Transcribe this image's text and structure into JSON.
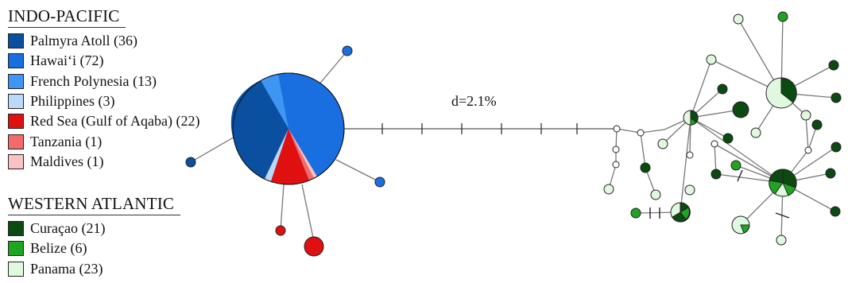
{
  "legend": {
    "indo_pacific": {
      "heading": "INDO-PACIFIC",
      "items": [
        {
          "label": "Palmyra Atoll (36)",
          "color": "#0a4fa0"
        },
        {
          "label": "Hawai‘i (72)",
          "color": "#1a6fe0"
        },
        {
          "label": "French Polynesia (13)",
          "color": "#3f95f2"
        },
        {
          "label": "Philippines (3)",
          "color": "#bcd8f8"
        },
        {
          "label": "Red Sea (Gulf of Aqaba) (22)",
          "color": "#e01010"
        },
        {
          "label": "Tanzania (1)",
          "color": "#f46a6a"
        },
        {
          "label": "Maldives (1)",
          "color": "#f9c2c2"
        }
      ]
    },
    "western_atlantic": {
      "heading": "WESTERN ATLANTIC",
      "items": [
        {
          "label": "Curaçao (21)",
          "color": "#0b4a10"
        },
        {
          "label": "Belize (6)",
          "color": "#1fa51f"
        },
        {
          "label": "Panama (23)",
          "color": "#e0f8df"
        }
      ]
    }
  },
  "network": {
    "distance_label": "d=2.1%"
  }
}
